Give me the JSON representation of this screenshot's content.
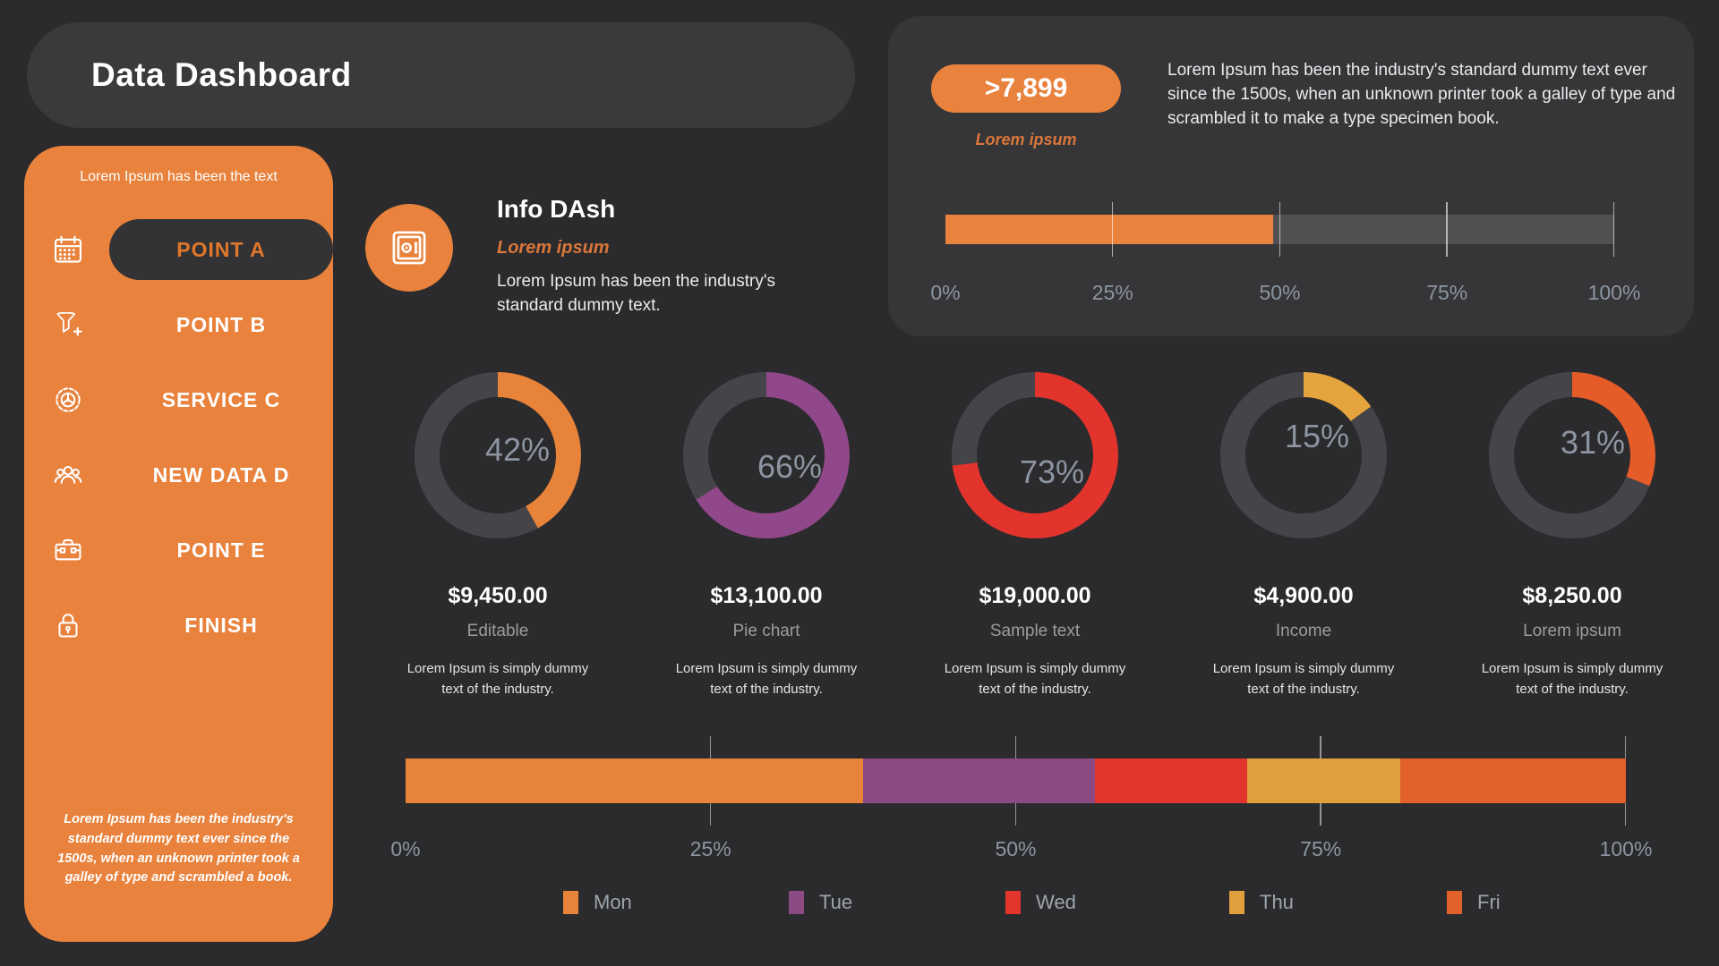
{
  "page": {
    "title": "Data Dashboard"
  },
  "sidebar": {
    "intro": "Lorem Ipsum has been the text",
    "items": [
      {
        "label": "POINT A",
        "icon": "calendar",
        "active": true
      },
      {
        "label": "POINT B",
        "icon": "filter-plus",
        "active": false
      },
      {
        "label": "SERVICE C",
        "icon": "gear",
        "active": false
      },
      {
        "label": "NEW DATA D",
        "icon": "users",
        "active": false
      },
      {
        "label": "POINT E",
        "icon": "toolbox",
        "active": false
      },
      {
        "label": "FINISH",
        "icon": "lock",
        "active": false
      }
    ],
    "footer_note": "Lorem Ipsum has been the industry's standard dummy text ever since the 1500s, when an unknown printer took a galley of type and scrambled  a book."
  },
  "stats_panel": {
    "badge_value": ">7,899",
    "badge_caption": "Lorem ipsum",
    "description": "Lorem Ipsum has been the industry's standard dummy text ever since the 1500s, when an unknown printer took a galley of type and scrambled it to make a type specimen book.",
    "progress": {
      "value_pct": 49,
      "fill_color": "#E8823C",
      "ticks": [
        "0%",
        "25%",
        "50%",
        "75%",
        "100%"
      ]
    }
  },
  "info_dash": {
    "icon": "safe",
    "title": "Info DAsh",
    "subtitle": "Lorem ipsum",
    "description": "Lorem Ipsum has been the industry's standard dummy text."
  },
  "colors": {
    "accent_orange": "#E8823C",
    "background": "#2B2A2C",
    "panel": "#363538",
    "donut_track": "#454449"
  },
  "chart_data": [
    {
      "type": "pie",
      "subtype": "donut-gauges",
      "gauges": [
        {
          "pct": 42,
          "color": "#E8833A",
          "value": "$9,450.00",
          "label": "Editable",
          "note": "Lorem Ipsum is simply dummy text of the industry."
        },
        {
          "pct": 66,
          "color": "#91488A",
          "value": "$13,100.00",
          "label": "Pie chart",
          "note": "Lorem Ipsum is simply dummy text of the industry."
        },
        {
          "pct": 73,
          "color": "#E2342D",
          "value": "$19,000.00",
          "label": "Sample text",
          "note": "Lorem Ipsum is simply dummy text of the industry."
        },
        {
          "pct": 15,
          "color": "#E5A43D",
          "value": "$4,900.00",
          "label": "Income",
          "note": "Lorem Ipsum is simply dummy text of the industry."
        },
        {
          "pct": 31,
          "color": "#E55C28",
          "value": "$8,250.00",
          "label": "Lorem ipsum",
          "note": "Lorem Ipsum is simply dummy text of the industry."
        }
      ],
      "start_angle": "12-oclock-clockwise"
    },
    {
      "type": "bar",
      "subtype": "stacked-horizontal",
      "series": [
        {
          "name": "Mon",
          "value": 37.5,
          "color": "#E8833A"
        },
        {
          "name": "Tue",
          "value": 19.0,
          "color": "#8C4A84"
        },
        {
          "name": "Wed",
          "value": 12.5,
          "color": "#E3342E"
        },
        {
          "name": "Thu",
          "value": 12.5,
          "color": "#E0A03E"
        },
        {
          "name": "Fri",
          "value": 18.5,
          "color": "#E2612B"
        }
      ],
      "axis_ticks": [
        "0%",
        "25%",
        "50%",
        "75%",
        "100%"
      ],
      "xlim": [
        0,
        100
      ],
      "legend_position": "bottom"
    }
  ]
}
